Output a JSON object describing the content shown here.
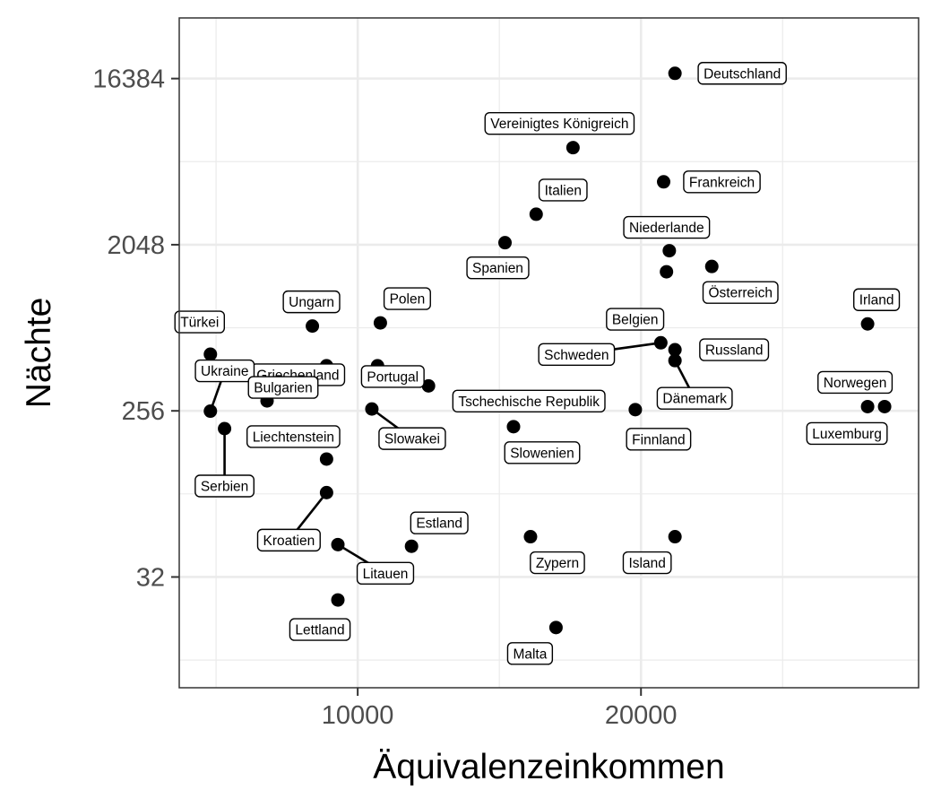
{
  "chart_data": {
    "type": "scatter",
    "xlabel": "Äquivalenzeinkommen",
    "ylabel": "Nächte",
    "x_scale": "linear",
    "y_scale": "log2",
    "xlim": [
      3700,
      29800
    ],
    "ylim": [
      8,
      35000
    ],
    "x_ticks": [
      10000,
      20000
    ],
    "y_ticks": [
      32,
      256,
      2048,
      16384
    ],
    "grid": true,
    "points": [
      {
        "name": "Deutschland",
        "x": 21200,
        "y": 17500
      },
      {
        "name": "Vereinigtes Königreich",
        "x": 17600,
        "y": 6900
      },
      {
        "name": "Frankreich",
        "x": 20800,
        "y": 4500
      },
      {
        "name": "Italien",
        "x": 16300,
        "y": 3000
      },
      {
        "name": "Niederlande",
        "x": 21000,
        "y": 1900
      },
      {
        "name": "Spanien",
        "x": 15200,
        "y": 2100
      },
      {
        "name": "Belgien",
        "x": 20900,
        "y": 1460
      },
      {
        "name": "Österreich",
        "x": 22500,
        "y": 1560
      },
      {
        "name": "Irland",
        "x": 28000,
        "y": 760
      },
      {
        "name": "Ungarn",
        "x": 8400,
        "y": 740
      },
      {
        "name": "Polen",
        "x": 10800,
        "y": 770
      },
      {
        "name": "Türkei",
        "x": 4800,
        "y": 520
      },
      {
        "name": "Griechenland",
        "x": 8900,
        "y": 450
      },
      {
        "name": "Ukraine",
        "x": 4800,
        "y": 255
      },
      {
        "name": "Bulgarien",
        "x": 6800,
        "y": 290
      },
      {
        "name": "Portugal",
        "x": 10700,
        "y": 450
      },
      {
        "name": "Tschechische Republik",
        "x": 12500,
        "y": 350
      },
      {
        "name": "Schweden",
        "x": 20700,
        "y": 600
      },
      {
        "name": "Russland",
        "x": 21200,
        "y": 550
      },
      {
        "name": "Dänemark",
        "x": 21200,
        "y": 480
      },
      {
        "name": "Norwegen",
        "x": 28000,
        "y": 270
      },
      {
        "name": "Luxemburg",
        "x": 28600,
        "y": 270
      },
      {
        "name": "Finnland",
        "x": 19800,
        "y": 260
      },
      {
        "name": "Slowakei",
        "x": 10500,
        "y": 262
      },
      {
        "name": "Slowenien",
        "x": 15500,
        "y": 210
      },
      {
        "name": "Serbien",
        "x": 5300,
        "y": 205
      },
      {
        "name": "Liechtenstein",
        "x": 8900,
        "y": 140
      },
      {
        "name": "Kroatien",
        "x": 8900,
        "y": 92
      },
      {
        "name": "Estland",
        "x": 11900,
        "y": 47
      },
      {
        "name": "Zypern",
        "x": 16100,
        "y": 53
      },
      {
        "name": "Island",
        "x": 21200,
        "y": 53
      },
      {
        "name": "Litauen",
        "x": 9300,
        "y": 48
      },
      {
        "name": "Lettland",
        "x": 9300,
        "y": 24
      },
      {
        "name": "Malta",
        "x": 17000,
        "y": 17
      }
    ]
  }
}
